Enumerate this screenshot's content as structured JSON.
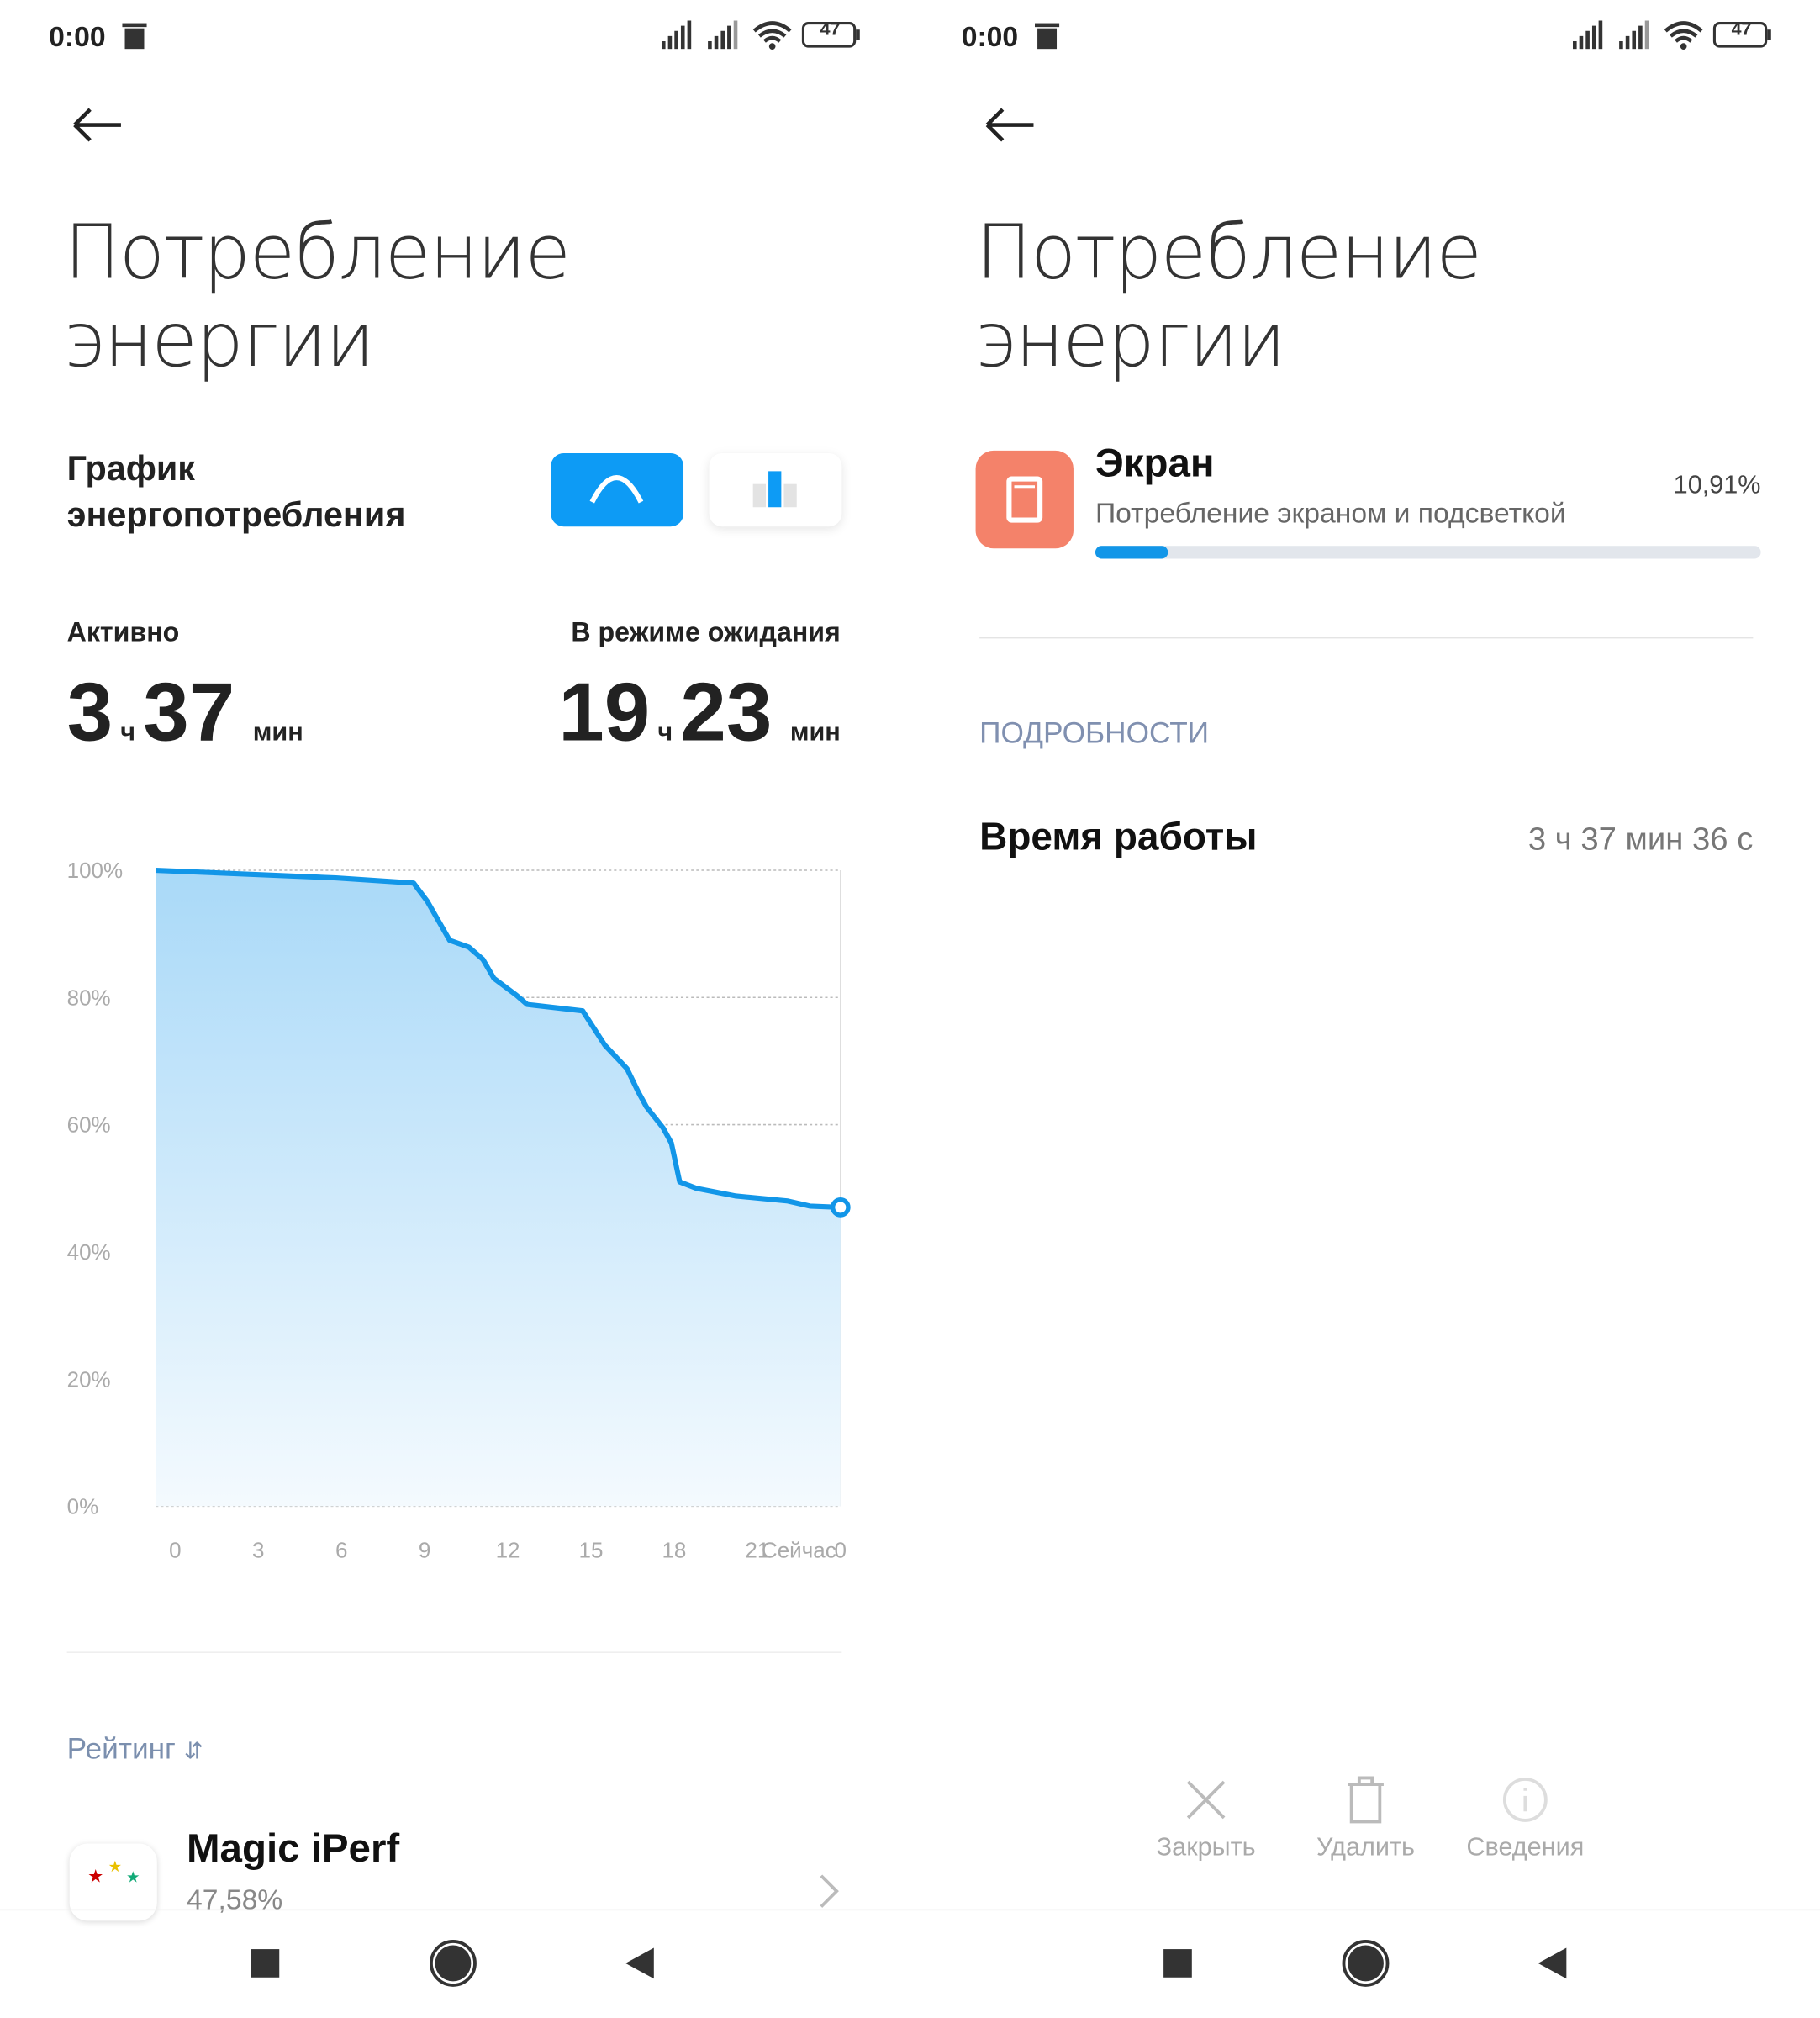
{
  "left": {
    "status_time": "0:00",
    "battery": "47",
    "title": "Потребление энергии",
    "graph_title": "График энергопотребления",
    "active": {
      "label": "Активно",
      "hours": "3",
      "hours_unit": "ч",
      "minutes": "37",
      "minutes_unit": "мин"
    },
    "standby": {
      "label": "В режиме ожидания",
      "hours": "19",
      "hours_unit": "ч",
      "minutes": "23",
      "minutes_unit": "мин"
    },
    "sort_label": "Рейтинг",
    "app": {
      "name": "Magic iPerf",
      "usage": "47,58%"
    }
  },
  "chart_data": {
    "type": "area",
    "color": "#1296e8",
    "grid": true,
    "x": [
      -0.7,
      5.8,
      8.6,
      9.1,
      9.9,
      10.6,
      11.1,
      11.5,
      12.3,
      12.7,
      14.7,
      15.5,
      16.3,
      16.7,
      17.0,
      17.6,
      17.9,
      18.2,
      18.8,
      20.2,
      22.1,
      22.9,
      24.0
    ],
    "values": [
      100,
      98.8,
      98,
      95.1,
      89,
      87.9,
      86,
      83,
      80.4,
      78.9,
      77.9,
      72.5,
      68.8,
      65.2,
      62.8,
      59.5,
      57.1,
      51,
      50,
      48.8,
      48,
      47.2,
      47
    ],
    "xlim": [
      -0.7,
      24.0
    ],
    "ylim": [
      0,
      100
    ],
    "xticks": [
      0,
      3,
      6,
      9,
      12,
      15,
      18,
      21,
      {
        "value": 22.5,
        "label": "Сейчас"
      },
      {
        "value": 24,
        "label": "0"
      }
    ],
    "yticks": [
      {
        "value": 0,
        "label": "0%"
      },
      {
        "value": 20,
        "label": "20%"
      },
      {
        "value": 40,
        "label": "40%"
      },
      {
        "value": 60,
        "label": "60%"
      },
      {
        "value": 80,
        "label": "80%"
      },
      {
        "value": 100,
        "label": "100%"
      }
    ]
  },
  "right": {
    "status_time": "0:00",
    "battery": "47",
    "title": "Потребление энергии",
    "item": {
      "name": "Экран",
      "description": "Потребление экраном и подсветкой",
      "percent": {
        "value": 10.91,
        "label": "10,91%"
      },
      "bar_color": "#1296e8"
    },
    "details_header": "ПОДРОБНОСТИ",
    "runtime": {
      "label": "Время работы",
      "value": "3 ч 37 мин 36 с"
    },
    "actions": [
      "Закрыть",
      "Удалить",
      "Сведения"
    ]
  }
}
